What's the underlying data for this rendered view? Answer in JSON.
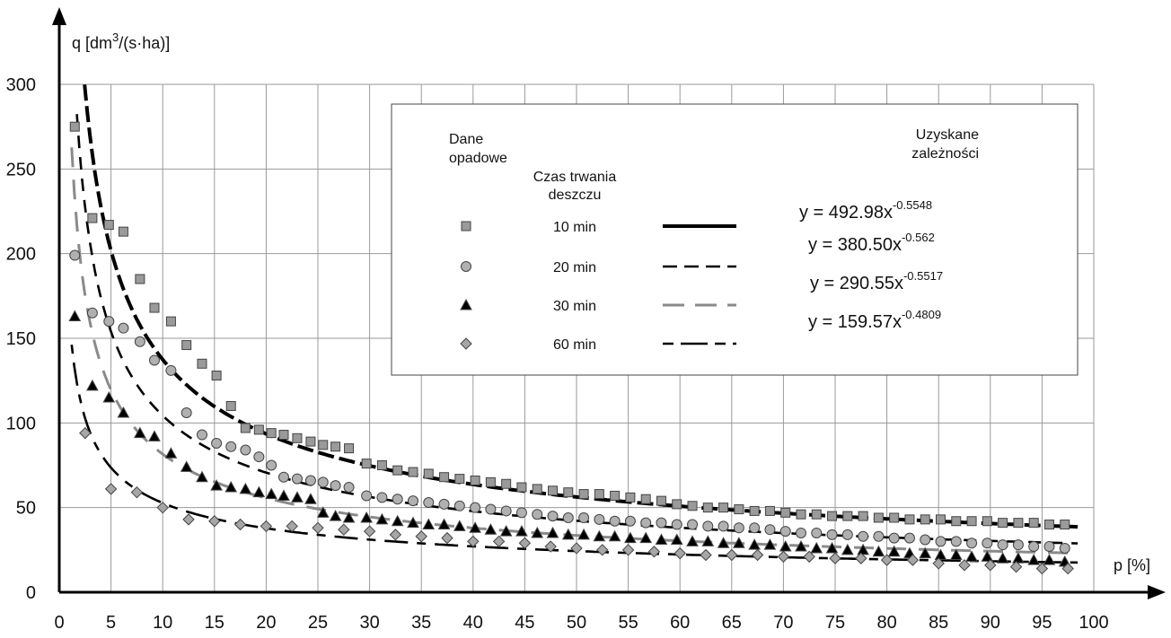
{
  "chart_data": {
    "type": "scatter",
    "xlabel": "p [%]",
    "ylabel": "q [dm³/(s·ha)]",
    "ylabel_base": "q [dm",
    "ylabel_sup": "3",
    "ylabel_tail": "/(s·ha)]",
    "xlim": [
      0,
      100
    ],
    "ylim": [
      0,
      300
    ],
    "xticks": [
      "0",
      "5",
      "10",
      "15",
      "20",
      "25",
      "30",
      "35",
      "40",
      "45",
      "50",
      "55",
      "60",
      "65",
      "70",
      "75",
      "80",
      "85",
      "90",
      "95",
      "100"
    ],
    "yticks": [
      "0",
      "50",
      "100",
      "150",
      "200",
      "250",
      "300"
    ],
    "grid": true,
    "legend": {
      "header_left": [
        "Dane",
        "opadowe"
      ],
      "header_mid": [
        "Czas trwania",
        "deszczu"
      ],
      "header_right": [
        "Uzyskane",
        "zależności"
      ],
      "placement": "top-right"
    },
    "series": [
      {
        "name": "10 min",
        "marker": "square",
        "line_style": "solid",
        "equation_base": "y = 492.98x",
        "equation_exp": "-0.5548",
        "coef": 492.98,
        "exp": -0.5548,
        "x": [
          1.5,
          3.2,
          4.8,
          6.2,
          7.8,
          9.2,
          10.8,
          12.3,
          13.8,
          15.2,
          16.6,
          18.0,
          19.3,
          20.5,
          21.7,
          23.0,
          24.3,
          25.5,
          26.7,
          28.0,
          29.7,
          31.2,
          32.7,
          34.2,
          35.7,
          37.2,
          38.7,
          40.2,
          41.7,
          43.2,
          44.7,
          46.2,
          47.7,
          49.2,
          50.7,
          52.2,
          53.7,
          55.2,
          56.7,
          58.2,
          59.7,
          61.2,
          62.7,
          64.2,
          65.7,
          67.2,
          68.7,
          70.2,
          71.7,
          73.2,
          74.7,
          76.2,
          77.7,
          79.2,
          80.7,
          82.2,
          83.7,
          85.2,
          86.7,
          88.2,
          89.7,
          91.2,
          92.7,
          94.2,
          95.7,
          97.2
        ],
        "y": [
          275,
          221,
          217,
          213,
          185,
          168,
          160,
          146,
          135,
          128,
          110,
          97,
          96,
          94,
          93,
          91,
          89,
          87,
          86,
          85,
          76,
          75,
          72,
          71,
          70,
          68,
          67,
          66,
          65,
          64,
          62,
          61,
          60,
          59,
          58,
          58,
          57,
          56,
          55,
          54,
          52,
          51,
          50,
          50,
          49,
          48,
          48,
          47,
          46,
          46,
          45,
          45,
          45,
          44,
          44,
          43,
          43,
          43,
          42,
          42,
          42,
          41,
          41,
          41,
          40,
          40
        ]
      },
      {
        "name": "20 min",
        "marker": "circle",
        "line_style": "dashed",
        "equation_base": "y = 380.50x",
        "equation_exp": "-0.562",
        "coef": 380.5,
        "exp": -0.562,
        "x": [
          1.5,
          3.2,
          4.8,
          6.2,
          7.8,
          9.2,
          10.8,
          12.3,
          13.8,
          15.2,
          16.6,
          18.0,
          19.3,
          20.5,
          21.7,
          23.0,
          24.3,
          25.5,
          26.7,
          28.0,
          29.7,
          31.2,
          32.7,
          34.2,
          35.7,
          37.2,
          38.7,
          40.2,
          41.7,
          43.2,
          44.7,
          46.2,
          47.7,
          49.2,
          50.7,
          52.2,
          53.7,
          55.2,
          56.7,
          58.2,
          59.7,
          61.2,
          62.7,
          64.2,
          65.7,
          67.2,
          68.7,
          70.2,
          71.7,
          73.2,
          74.7,
          76.2,
          77.7,
          79.2,
          80.7,
          82.2,
          83.7,
          85.2,
          86.7,
          88.2,
          89.7,
          91.2,
          92.7,
          94.2,
          95.7,
          97.2
        ],
        "y": [
          199,
          165,
          160,
          156,
          148,
          137,
          131,
          106,
          93,
          88,
          86,
          84,
          80,
          75,
          68,
          67,
          66,
          65,
          63,
          62,
          57,
          56,
          55,
          54,
          53,
          52,
          51,
          50,
          49,
          48,
          47,
          46,
          45,
          44,
          44,
          43,
          42,
          42,
          41,
          41,
          40,
          40,
          39,
          39,
          38,
          38,
          37,
          36,
          35,
          35,
          34,
          34,
          33,
          33,
          32,
          32,
          31,
          30,
          30,
          29,
          29,
          28,
          28,
          27,
          27,
          26
        ]
      },
      {
        "name": "30 min",
        "marker": "triangle",
        "line_style": "long-dash",
        "equation_base": "y = 290.55x",
        "equation_exp": "-0.5517",
        "coef": 290.55,
        "exp": -0.5517,
        "x": [
          1.5,
          3.2,
          4.8,
          6.2,
          7.8,
          9.2,
          10.8,
          12.3,
          13.8,
          15.2,
          16.6,
          18.0,
          19.3,
          20.5,
          21.7,
          23.0,
          24.3,
          25.5,
          26.7,
          28.0,
          29.7,
          31.2,
          32.7,
          34.2,
          35.7,
          37.2,
          38.7,
          40.2,
          41.7,
          43.2,
          44.7,
          46.2,
          47.7,
          49.2,
          50.7,
          52.2,
          53.7,
          55.2,
          56.7,
          58.2,
          59.7,
          61.2,
          62.7,
          64.2,
          65.7,
          67.2,
          68.7,
          70.2,
          71.7,
          73.2,
          74.7,
          76.2,
          77.7,
          79.2,
          80.7,
          82.2,
          83.7,
          85.2,
          86.7,
          88.2,
          89.7,
          91.2,
          92.7,
          94.2,
          95.7,
          97.2
        ],
        "y": [
          163,
          122,
          115,
          106,
          94,
          92,
          82,
          74,
          68,
          63,
          62,
          61,
          59,
          58,
          57,
          56,
          55,
          47,
          45,
          44,
          44,
          43,
          42,
          41,
          40,
          40,
          39,
          38,
          37,
          36,
          36,
          35,
          35,
          34,
          34,
          33,
          33,
          32,
          32,
          31,
          31,
          30,
          30,
          29,
          29,
          28,
          28,
          27,
          27,
          26,
          26,
          25,
          25,
          24,
          24,
          23,
          23,
          22,
          22,
          21,
          21,
          20,
          20,
          19,
          19,
          18
        ]
      },
      {
        "name": "60 min",
        "marker": "diamond",
        "line_style": "dash-long-dash",
        "equation_base": "y = 159.57x",
        "equation_exp": "-0.4809",
        "coef": 159.57,
        "exp": -0.4809,
        "x": [
          2.5,
          5.0,
          7.5,
          10.0,
          12.5,
          15.0,
          17.5,
          20.0,
          22.5,
          25.0,
          27.5,
          30.0,
          32.5,
          35.0,
          37.5,
          40.0,
          42.5,
          45.0,
          47.5,
          50.0,
          52.5,
          55.0,
          57.5,
          60.0,
          62.5,
          65.0,
          67.5,
          70.0,
          72.5,
          75.0,
          77.5,
          80.0,
          82.5,
          85.0,
          87.5,
          90.0,
          92.5,
          95.0,
          97.5
        ],
        "y": [
          94,
          61,
          59,
          50,
          43,
          42,
          40,
          39,
          39,
          38,
          37,
          36,
          34,
          33,
          32,
          30,
          30,
          29,
          27,
          26,
          25,
          25,
          24,
          23,
          22,
          22,
          22,
          21,
          21,
          20,
          20,
          19,
          19,
          17,
          16,
          16,
          15,
          14,
          14
        ]
      }
    ]
  }
}
